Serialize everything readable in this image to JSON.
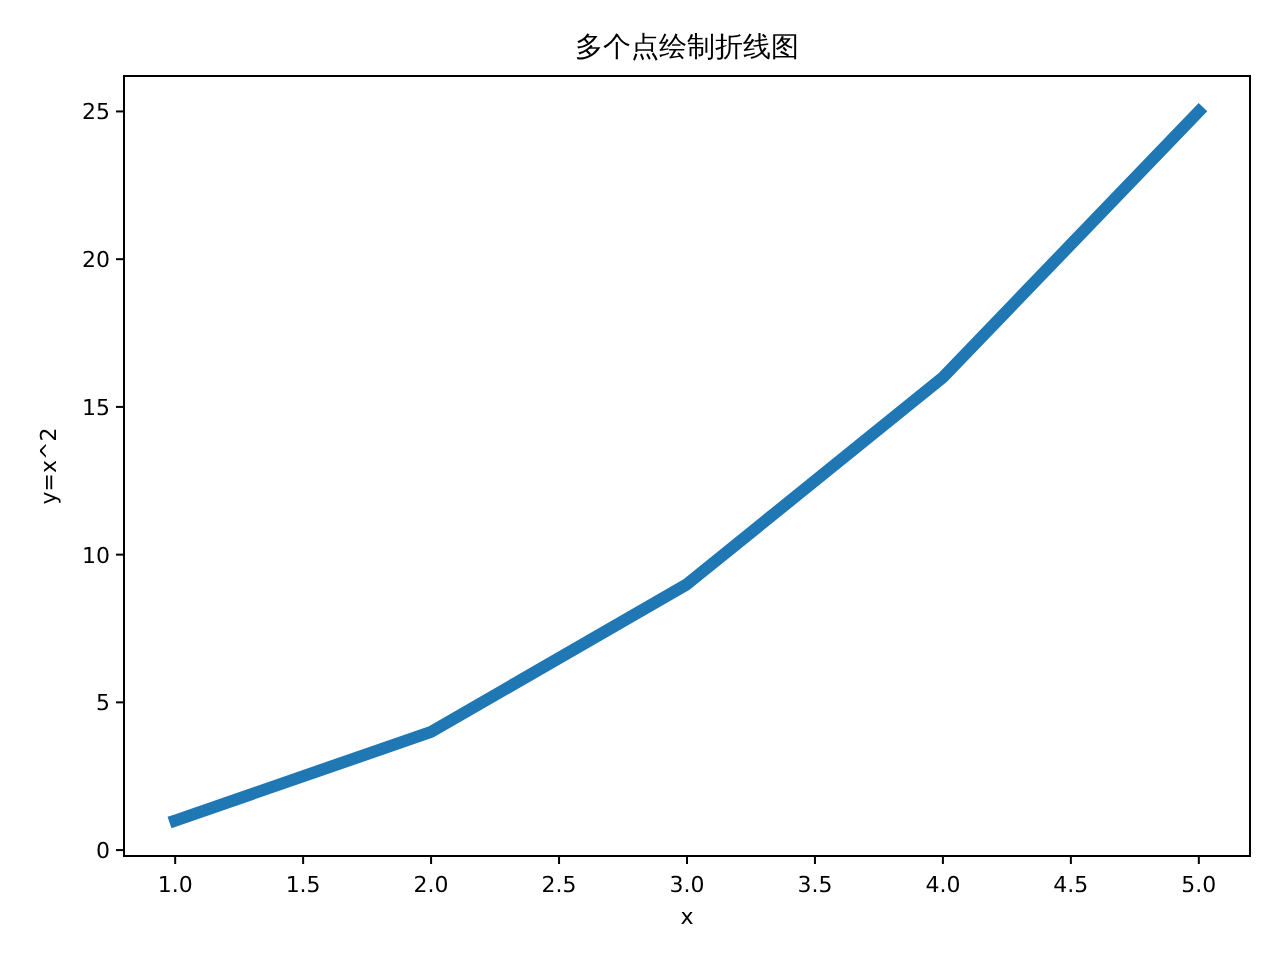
{
  "chart_data": {
    "type": "line",
    "title": "多个点绘制折线图",
    "xlabel": "x",
    "ylabel": "y=x^2",
    "x": [
      1,
      2,
      3,
      4,
      5
    ],
    "values": [
      1,
      4,
      9,
      16,
      25
    ],
    "color": "#1f77b4",
    "xlim": [
      0.8,
      5.2
    ],
    "ylim": [
      -0.2,
      26.2
    ],
    "xticks": [
      {
        "value": 1,
        "label": "1.0"
      },
      {
        "value": 1.5,
        "label": "1.5"
      },
      {
        "value": 2,
        "label": "2.0"
      },
      {
        "value": 2.5,
        "label": "2.5"
      },
      {
        "value": 3,
        "label": "3.0"
      },
      {
        "value": 3.5,
        "label": "3.5"
      },
      {
        "value": 4,
        "label": "4.0"
      },
      {
        "value": 4.5,
        "label": "4.5"
      },
      {
        "value": 5,
        "label": "5.0"
      }
    ],
    "yticks": [
      0,
      5,
      10,
      15,
      20,
      25
    ]
  }
}
